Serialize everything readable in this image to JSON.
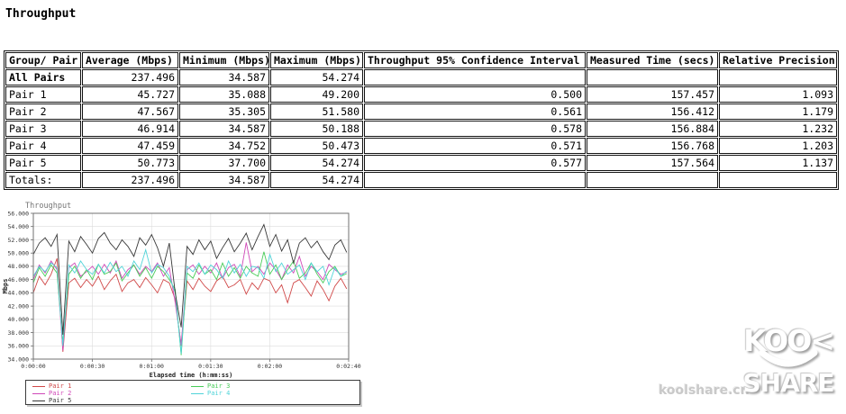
{
  "page_title": "Throughput",
  "table": {
    "headers": [
      "Group/ Pair",
      "Average (Mbps)",
      "Minimum (Mbps)",
      "Maximum (Mbps)",
      "Throughput 95% Confidence Interval",
      "Measured Time (secs)",
      "Relative Precision"
    ],
    "rows": [
      {
        "label": "All Pairs",
        "bold": true,
        "values": [
          "237.496",
          "34.587",
          "54.274",
          "",
          "",
          ""
        ]
      },
      {
        "label": "Pair 1",
        "bold": false,
        "values": [
          "45.727",
          "35.088",
          "49.200",
          "0.500",
          "157.457",
          "1.093"
        ]
      },
      {
        "label": "Pair 2",
        "bold": false,
        "values": [
          "47.567",
          "35.305",
          "51.580",
          "0.561",
          "156.412",
          "1.179"
        ]
      },
      {
        "label": "Pair 3",
        "bold": false,
        "values": [
          "46.914",
          "34.587",
          "50.188",
          "0.578",
          "156.884",
          "1.232"
        ]
      },
      {
        "label": "Pair 4",
        "bold": false,
        "values": [
          "47.459",
          "34.752",
          "50.473",
          "0.571",
          "156.768",
          "1.203"
        ]
      },
      {
        "label": "Pair 5",
        "bold": false,
        "values": [
          "50.773",
          "37.700",
          "54.274",
          "0.577",
          "157.564",
          "1.137"
        ]
      },
      {
        "label": "Totals:",
        "bold": false,
        "values": [
          "237.496",
          "34.587",
          "54.274",
          "",
          "",
          ""
        ]
      }
    ]
  },
  "chart": {
    "legend": [
      {
        "label": "Pair 1",
        "color": "#d04848",
        "column": 0
      },
      {
        "label": "Pair 2",
        "color": "#d048b8",
        "column": 0
      },
      {
        "label": "Pair 5",
        "color": "#383838",
        "column": 0
      },
      {
        "label": "Pair 3",
        "color": "#48cc58",
        "column": 1
      },
      {
        "label": "Pair 4",
        "color": "#50d4d8",
        "column": 1
      }
    ]
  },
  "chart_data": {
    "type": "line",
    "title": "Throughput",
    "xlabel": "Elapsed time (h:mm:ss)",
    "ylabel": "Mbps",
    "ylim": [
      34,
      56
    ],
    "ytick_step": 2,
    "grid": true,
    "legend_position": "bottom",
    "x_step_seconds": 3,
    "x_total_seconds": 160,
    "xticks": [
      {
        "t": 0,
        "label": "0:00:00"
      },
      {
        "t": 30,
        "label": "0:00:30"
      },
      {
        "t": 60,
        "label": "0:01:00"
      },
      {
        "t": 90,
        "label": "0:01:30"
      },
      {
        "t": 120,
        "label": "0:02:00"
      },
      {
        "t": 160,
        "label": "0:02:40"
      }
    ],
    "series": [
      {
        "name": "Pair 1",
        "color": "#d04848",
        "values": [
          44.0,
          46.5,
          45.2,
          46.8,
          49.2,
          35.1,
          45.5,
          46.2,
          44.8,
          46.0,
          45.0,
          46.5,
          44.5,
          45.8,
          46.8,
          44.2,
          45.5,
          46.0,
          44.8,
          46.3,
          45.2,
          44.0,
          46.0,
          45.5,
          43.0,
          36.0,
          45.8,
          44.5,
          46.2,
          45.0,
          44.2,
          45.8,
          46.5,
          44.8,
          45.2,
          46.0,
          43.8,
          45.5,
          44.5,
          46.2,
          45.8,
          44.0,
          45.2,
          42.5,
          45.5,
          46.0,
          44.8,
          43.5,
          45.8,
          44.5,
          42.8,
          45.0,
          46.2,
          44.6
        ]
      },
      {
        "name": "Pair 2",
        "color": "#d048b8",
        "values": [
          46.0,
          48.2,
          47.0,
          48.8,
          47.5,
          35.3,
          47.8,
          48.5,
          46.5,
          47.2,
          48.0,
          46.8,
          48.3,
          47.0,
          48.8,
          46.2,
          47.5,
          48.2,
          46.8,
          48.0,
          47.2,
          48.5,
          46.5,
          47.8,
          42.5,
          36.2,
          47.5,
          48.2,
          46.8,
          48.0,
          47.0,
          48.5,
          46.2,
          47.8,
          48.3,
          46.5,
          51.6,
          47.2,
          48.0,
          46.8,
          48.5,
          47.5,
          46.0,
          48.2,
          47.0,
          49.5,
          46.5,
          48.0,
          47.2,
          46.0,
          48.3,
          47.5,
          46.8,
          47.1
        ]
      },
      {
        "name": "Pair 3",
        "color": "#48cc58",
        "values": [
          45.5,
          47.8,
          46.5,
          48.2,
          47.0,
          36.5,
          46.8,
          48.0,
          46.2,
          47.5,
          46.0,
          48.3,
          46.8,
          47.2,
          48.5,
          45.8,
          47.0,
          48.2,
          46.5,
          47.8,
          46.2,
          48.0,
          47.2,
          46.0,
          44.5,
          34.6,
          47.0,
          46.2,
          48.2,
          46.8,
          47.5,
          46.0,
          48.5,
          46.5,
          47.8,
          46.2,
          48.0,
          47.0,
          46.5,
          50.2,
          46.8,
          48.2,
          46.0,
          47.5,
          48.8,
          46.2,
          47.0,
          48.5,
          46.8,
          45.5,
          47.2,
          48.0,
          46.5,
          46.9
        ]
      },
      {
        "name": "Pair 4",
        "color": "#50d4d8",
        "values": [
          46.5,
          48.0,
          47.2,
          48.5,
          47.8,
          36.0,
          48.2,
          47.0,
          48.8,
          47.5,
          46.8,
          48.3,
          47.0,
          48.6,
          47.2,
          48.0,
          46.5,
          48.8,
          47.5,
          50.5,
          47.0,
          48.3,
          47.8,
          46.5,
          44.0,
          34.8,
          48.0,
          47.2,
          48.5,
          46.8,
          48.2,
          47.5,
          46.2,
          48.8,
          47.0,
          48.3,
          46.5,
          48.0,
          47.8,
          46.2,
          49.8,
          47.2,
          48.5,
          46.8,
          47.5,
          48.2,
          46.0,
          48.5,
          47.2,
          48.0,
          45.2,
          47.8,
          46.5,
          47.3
        ]
      },
      {
        "name": "Pair 5",
        "color": "#383838",
        "values": [
          49.8,
          51.5,
          52.3,
          51.0,
          52.8,
          37.7,
          51.8,
          50.2,
          52.5,
          51.3,
          50.0,
          52.2,
          53.1,
          51.5,
          50.5,
          52.0,
          51.0,
          49.5,
          52.3,
          51.2,
          52.8,
          50.8,
          48.0,
          51.5,
          44.0,
          38.8,
          51.0,
          49.8,
          52.0,
          50.5,
          51.8,
          49.2,
          50.8,
          52.2,
          50.2,
          51.5,
          53.0,
          50.5,
          52.5,
          54.3,
          51.0,
          52.8,
          50.3,
          52.0,
          48.5,
          51.5,
          52.3,
          50.8,
          51.8,
          50.2,
          49.0,
          51.2,
          52.0,
          50.1
        ]
      }
    ]
  },
  "watermark": {
    "logo_top": "KOO<",
    "logo_bottom": "SHARE",
    "site": "koolshare.cn"
  }
}
